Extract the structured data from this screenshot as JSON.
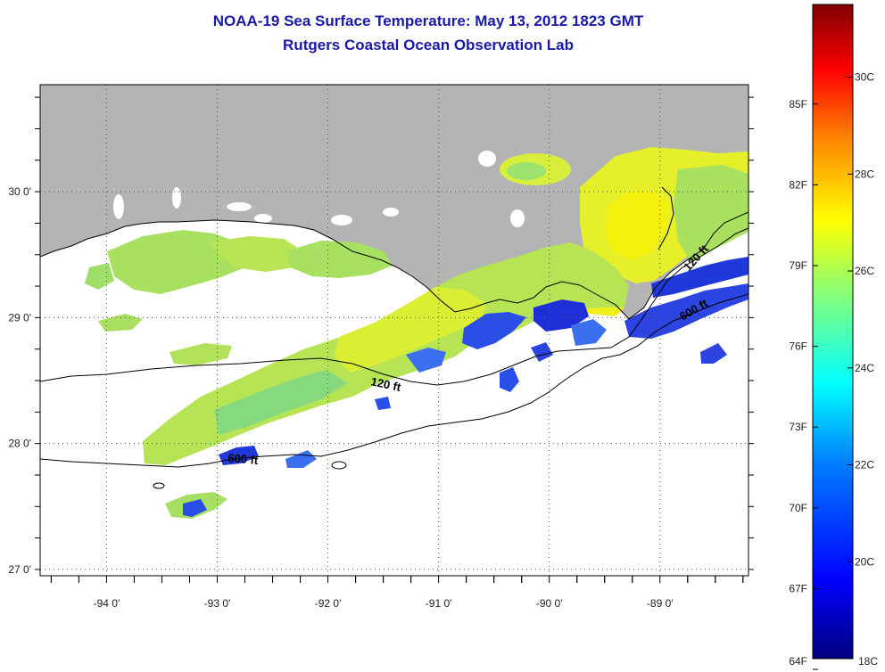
{
  "title": "NOAA-19 Sea Surface Temperature:  May 13, 2012 1823 GMT",
  "subtitle": "Rutgers Coastal Ocean Observation Lab",
  "map": {
    "lon_range": [
      -94.6,
      -88.2
    ],
    "lat_range": [
      26.95,
      30.85
    ],
    "lon_ticks": [
      {
        "value": -94,
        "label": "-94 0'"
      },
      {
        "value": -93,
        "label": "-93 0'"
      },
      {
        "value": -92,
        "label": "-92 0'"
      },
      {
        "value": -91,
        "label": "-91 0'"
      },
      {
        "value": -90,
        "label": "-90 0'"
      },
      {
        "value": -89,
        "label": "-89 0'"
      }
    ],
    "lat_ticks": [
      {
        "value": 30,
        "label": "30 0'"
      },
      {
        "value": 29,
        "label": "29 0'"
      },
      {
        "value": 28,
        "label": "28 0'"
      },
      {
        "value": 27,
        "label": "27 0'"
      }
    ],
    "grid": "dotted",
    "land_color": "#b4b4b4",
    "contour_labels": [
      "120 ft",
      "600 ft",
      "120 ft",
      "600 ft"
    ]
  },
  "colorbar": {
    "fahrenheit": [
      "85F",
      "82F",
      "79F",
      "76F",
      "73F",
      "70F",
      "67F",
      "64F"
    ],
    "celsius": [
      "30C",
      "28C",
      "26C",
      "24C",
      "22C",
      "20C",
      "18C"
    ],
    "range_c": [
      18,
      31.5
    ],
    "colors": [
      "#00007f",
      "#0000ff",
      "#007fff",
      "#00ffff",
      "#7fff7f",
      "#ffff00",
      "#ff7f00",
      "#ff0000",
      "#7f0000"
    ]
  }
}
